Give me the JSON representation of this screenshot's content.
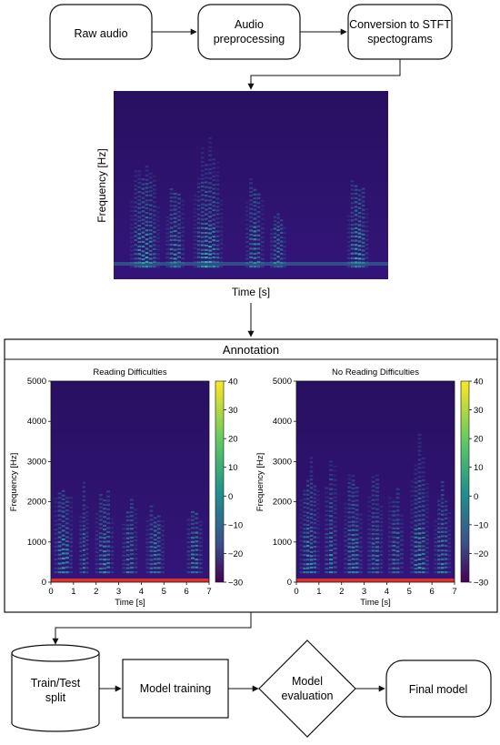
{
  "flow_top": {
    "raw_audio": "Raw audio",
    "preprocessing": [
      "Audio",
      "preprocessing"
    ],
    "conversion": [
      "Conversion to STFT",
      "spectograms"
    ]
  },
  "top_spectrogram": {
    "ylabel": "Frequency [Hz]",
    "xlabel": "Time [s]"
  },
  "annotation": {
    "title": "Annotation",
    "charts": [
      {
        "title": "Reading Difficulties",
        "xlabel": "Time [s]",
        "ylabel": "Frequency [Hz]",
        "xticks": [
          "0",
          "1",
          "2",
          "3",
          "4",
          "5",
          "6",
          "7"
        ],
        "yticks": [
          "0",
          "1000",
          "2000",
          "3000",
          "4000",
          "5000"
        ],
        "colorbar_ticks": [
          "40",
          "30",
          "20",
          "10",
          "0",
          "−10",
          "−20",
          "−30"
        ]
      },
      {
        "title": "No Reading Difficulties",
        "xlabel": "Time [s]",
        "ylabel": "Frequency [Hz]",
        "xticks": [
          "0",
          "1",
          "2",
          "3",
          "4",
          "5",
          "6",
          "7"
        ],
        "yticks": [
          "0",
          "1000",
          "2000",
          "3000",
          "4000",
          "5000"
        ],
        "colorbar_ticks": [
          "40",
          "30",
          "20",
          "10",
          "0",
          "−10",
          "−20",
          "−30"
        ]
      }
    ]
  },
  "flow_bottom": {
    "train_test": [
      "Train/Test",
      "split"
    ],
    "model_training": "Model training",
    "model_evaluation": [
      "Model",
      "evaluation"
    ],
    "final_model": "Final model"
  },
  "colors": {
    "spec_background": "#2a1270",
    "harmonic_low": "#2ab7a9",
    "harmonic_high": "#3b5fa8",
    "red_band": "#e0312b"
  }
}
